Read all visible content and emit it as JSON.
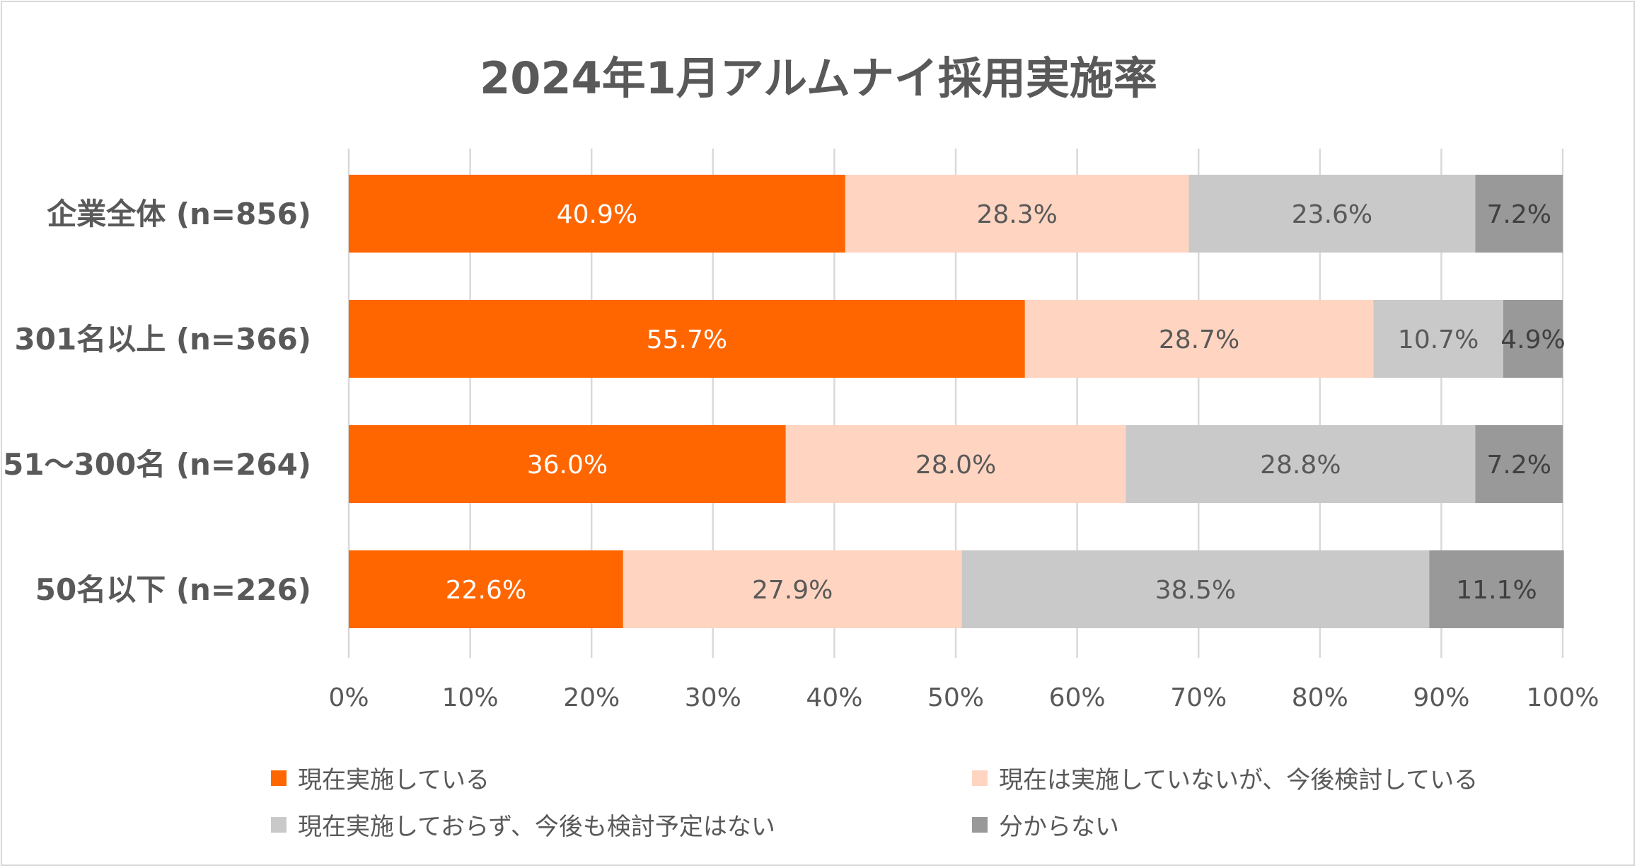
{
  "chart_data": {
    "type": "bar",
    "orientation": "horizontal",
    "stacked": true,
    "title": "2024年1月アルムナイ採用実施率",
    "categories": [
      "企業全体 (n=856)",
      "301名以上 (n=366)",
      "51〜300名 (n=264)",
      "50名以下 (n=226)"
    ],
    "series": [
      {
        "name": "現在実施している",
        "color": "#ff6600",
        "label_color": "#ffffff",
        "values": [
          40.9,
          55.7,
          36.0,
          22.6
        ],
        "labels": [
          "40.9%",
          "55.7%",
          "36.0%",
          "22.6%"
        ]
      },
      {
        "name": "現在は実施していないが、今後検討している",
        "color": "#ffd5c2",
        "label_color": "#595959",
        "values": [
          28.3,
          28.7,
          28.0,
          27.9
        ],
        "labels": [
          "28.3%",
          "28.7%",
          "28.0%",
          "27.9%"
        ]
      },
      {
        "name": "現在実施しておらず、今後も検討予定はない",
        "color": "#c9c9c9",
        "label_color": "#595959",
        "values": [
          23.6,
          10.7,
          28.8,
          38.5
        ],
        "labels": [
          "23.6%",
          "10.7%",
          "28.8%",
          "38.5%"
        ]
      },
      {
        "name": "分からない",
        "color": "#999999",
        "label_color": "#404040",
        "values": [
          7.2,
          4.9,
          7.2,
          11.1
        ],
        "labels": [
          "7.2%",
          "4.9%",
          "7.2%",
          "11.1%"
        ]
      }
    ],
    "xlim": [
      0,
      100
    ],
    "xticks": [
      "0%",
      "10%",
      "20%",
      "30%",
      "40%",
      "50%",
      "60%",
      "70%",
      "80%",
      "90%",
      "100%"
    ],
    "grid": true,
    "legend_position": "bottom"
  }
}
